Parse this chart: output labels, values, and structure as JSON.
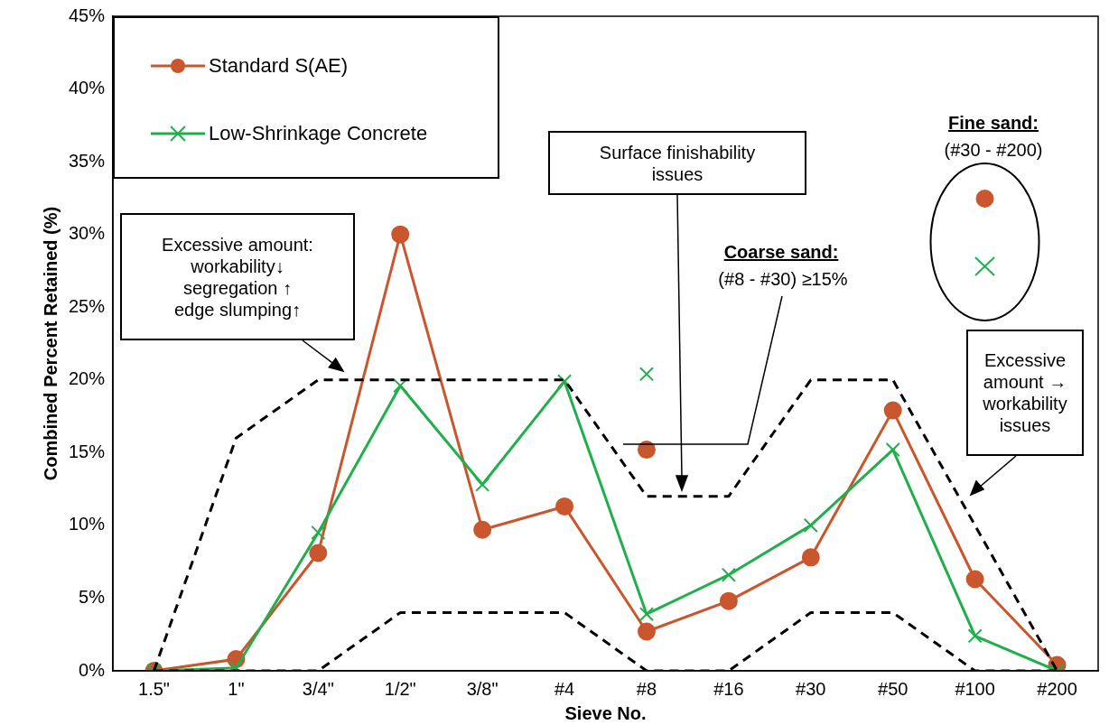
{
  "chart_data": {
    "type": "line",
    "xlabel": "Sieve No.",
    "ylabel": "Combined Percent Retained (%)",
    "categories": [
      "1.5\"",
      "1\"",
      "3/4\"",
      "1/2\"",
      "3/8\"",
      "#4",
      "#8",
      "#16",
      "#30",
      "#50",
      "#100",
      "#200"
    ],
    "series": [
      {
        "name": "Standard S(AE)",
        "color": "#c9562c",
        "marker": "circle",
        "values": [
          0,
          0.8,
          8.1,
          30,
          9.7,
          11.3,
          2.7,
          4.8,
          7.8,
          17.9,
          6.3,
          0.4
        ]
      },
      {
        "name": "Low-Shrinkage Concrete",
        "color": "#1faf4b",
        "marker": "cross",
        "values": [
          0,
          0.2,
          9.5,
          19.6,
          12.8,
          19.9,
          3.9,
          6.6,
          10.0,
          15.2,
          2.4,
          0.0
        ]
      },
      {
        "color": "#000000",
        "marker": "none",
        "line_style": "dashed",
        "values": [
          0,
          16,
          20,
          20,
          20,
          20,
          12,
          12,
          20,
          20,
          10,
          0
        ]
      },
      {
        "color": "#000000",
        "marker": "none",
        "line_style": "dashed",
        "values": [
          0,
          0,
          0,
          4,
          4,
          4,
          0,
          0,
          4,
          4,
          0,
          0
        ]
      },
      {
        "type": "scatter",
        "color": "#c9562c",
        "marker": "circle",
        "x": [
          "#8"
        ],
        "values": [
          15.2
        ]
      },
      {
        "type": "scatter",
        "color": "#1faf4b",
        "marker": "cross",
        "x": [
          "#8"
        ],
        "values": [
          20.4
        ]
      }
    ],
    "ylim": [
      0,
      45
    ],
    "yticks": [
      {
        "value": 0,
        "label": "0%"
      },
      {
        "value": 5,
        "label": "5%"
      },
      {
        "value": 10,
        "label": "10%"
      },
      {
        "value": 15,
        "label": "15%"
      },
      {
        "value": 20,
        "label": "20%"
      },
      {
        "value": 25,
        "label": "25%"
      },
      {
        "value": 30,
        "label": "30%"
      },
      {
        "value": 35,
        "label": "35%"
      },
      {
        "value": 40,
        "label": "40%"
      },
      {
        "value": 45,
        "label": "45%"
      }
    ],
    "grid": false,
    "legend": "top left",
    "annotations": [
      "Excessive amount:\nworkability↓\nsegregation ↑\nedge slumping↑",
      "Surface finishability\nissues",
      "Coarse sand:",
      "(#8 - #30) ≥15%",
      "Fine sand:",
      "(#30 - #200)",
      "Excessive\namount →\nworkability\nissues"
    ]
  }
}
